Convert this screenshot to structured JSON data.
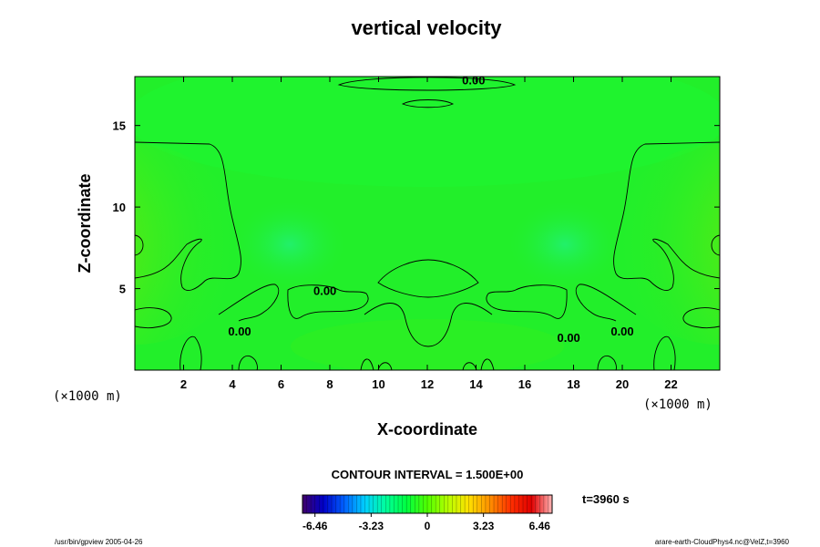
{
  "chart_data": {
    "type": "heatmap",
    "title": "vertical velocity",
    "xlabel": "X-coordinate",
    "ylabel": "Z-coordinate",
    "x_unit": "(×1000 m)",
    "y_unit": "(×1000 m)",
    "xlim": [
      0,
      24
    ],
    "ylim": [
      0,
      18
    ],
    "x_ticks": [
      2,
      4,
      6,
      8,
      10,
      12,
      14,
      16,
      18,
      20,
      22
    ],
    "y_ticks": [
      5,
      10,
      15
    ],
    "contour_interval_text": "CONTOUR INTERVAL = 1.500E+00",
    "time_text": "t=3960 s",
    "colorbar": {
      "range": [
        -6.46,
        6.46
      ],
      "tick_values": [
        -6.46,
        -3.23,
        0,
        3.23,
        6.46
      ],
      "tick_labels": [
        "-6.46",
        "-3.23",
        "0",
        "3.23",
        "6.46"
      ],
      "colors": [
        "#40006a",
        "#0000c8",
        "#0060ff",
        "#00d0ff",
        "#00ff9c",
        "#00ff40",
        "#50ff00",
        "#b8ff00",
        "#ffe000",
        "#ff9000",
        "#ff3000",
        "#e00000",
        "#ffb4b4"
      ]
    },
    "contour_labels": [
      {
        "text": "0.00",
        "x": 13.9,
        "z": 17.8
      },
      {
        "text": "0.00",
        "x": 7.8,
        "z": 4.9
      },
      {
        "text": "0.00",
        "x": 4.3,
        "z": 2.4
      },
      {
        "text": "0.00",
        "x": 17.8,
        "z": 2.0
      },
      {
        "text": "0.00",
        "x": 20.0,
        "z": 2.4
      }
    ]
  },
  "footer": {
    "left": "/usr/bin/gpview 2005-04-26",
    "right": "arare-earth-CloudPhys4.nc@VelZ,t=3960"
  }
}
